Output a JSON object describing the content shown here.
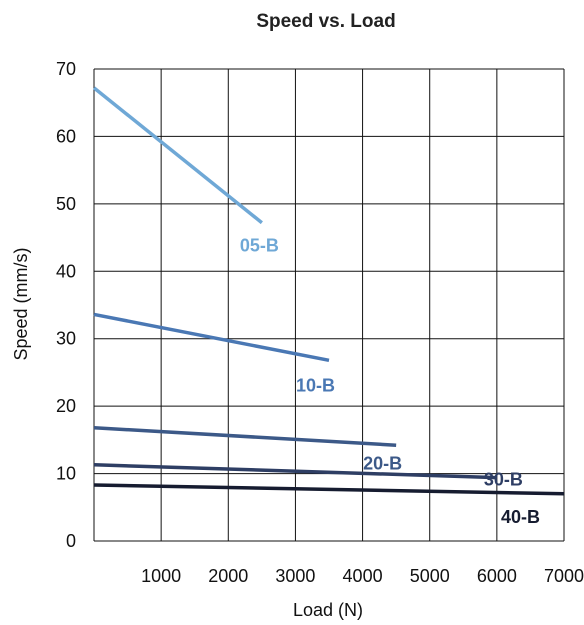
{
  "chart_data": {
    "type": "line",
    "title": "Speed vs. Load",
    "xlabel": "Load (N)",
    "ylabel": "Speed (mm/s)",
    "xlim": [
      0,
      7000
    ],
    "ylim": [
      0,
      70
    ],
    "x_ticks": [
      "1000",
      "2000",
      "3000",
      "4000",
      "5000",
      "6000",
      "7000"
    ],
    "y_ticks": [
      "0",
      "10",
      "20",
      "30",
      "40",
      "50",
      "60",
      "70"
    ],
    "grid": true,
    "series": [
      {
        "name": "05-B",
        "color": "#6fa8d6",
        "x": [
          0,
          2500
        ],
        "y": [
          67.2,
          47.2
        ]
      },
      {
        "name": "10-B",
        "color": "#4a78b4",
        "x": [
          0,
          3500
        ],
        "y": [
          33.6,
          26.8
        ]
      },
      {
        "name": "20-B",
        "color": "#3c5988",
        "x": [
          0,
          4500
        ],
        "y": [
          16.8,
          14.2
        ]
      },
      {
        "name": "30-B",
        "color": "#2e3e64",
        "x": [
          0,
          6000
        ],
        "y": [
          11.3,
          9.4
        ]
      },
      {
        "name": "40-B",
        "color": "#161c30",
        "x": [
          0,
          7000
        ],
        "y": [
          8.3,
          7.0
        ]
      }
    ]
  }
}
